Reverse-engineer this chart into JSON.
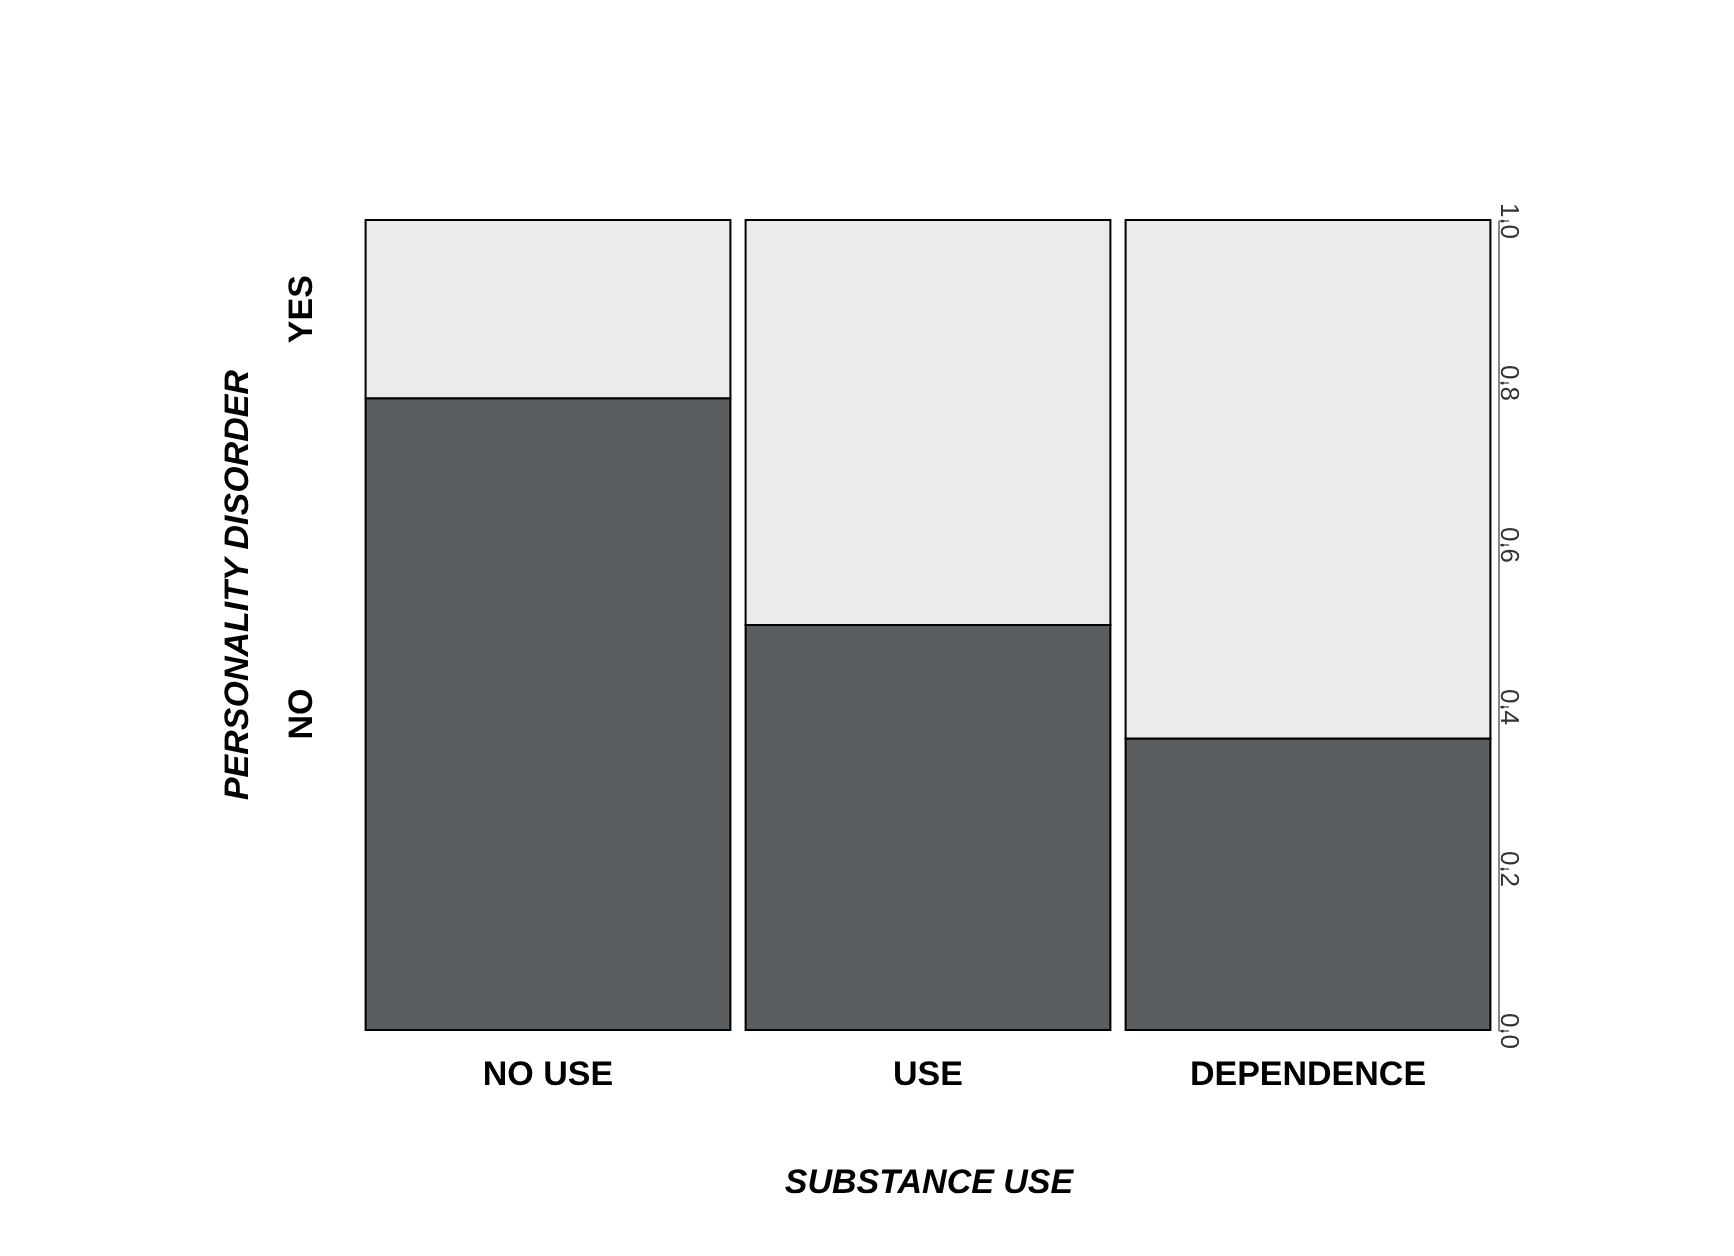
{
  "chart_data": {
    "type": "bar",
    "stacked": true,
    "xlabel": "SUBSTANCE USE",
    "ylabel": "PERSONALITY DISORDER",
    "categories": [
      "NO USE",
      "USE",
      "DEPENDENCE"
    ],
    "series": [
      {
        "name": "NO",
        "color": "#5a5e61",
        "values": [
          0.78,
          0.5,
          0.36
        ]
      },
      {
        "name": "YES",
        "color": "#ebebeb",
        "values": [
          0.22,
          0.5,
          0.64
        ]
      }
    ],
    "ylim": [
      0,
      1
    ],
    "yticks": [
      {
        "value": 0,
        "label": "0.0"
      },
      0.2,
      0.4,
      0.6,
      0.8,
      {
        "value": 1,
        "label": "1.0"
      }
    ],
    "grid": false
  }
}
